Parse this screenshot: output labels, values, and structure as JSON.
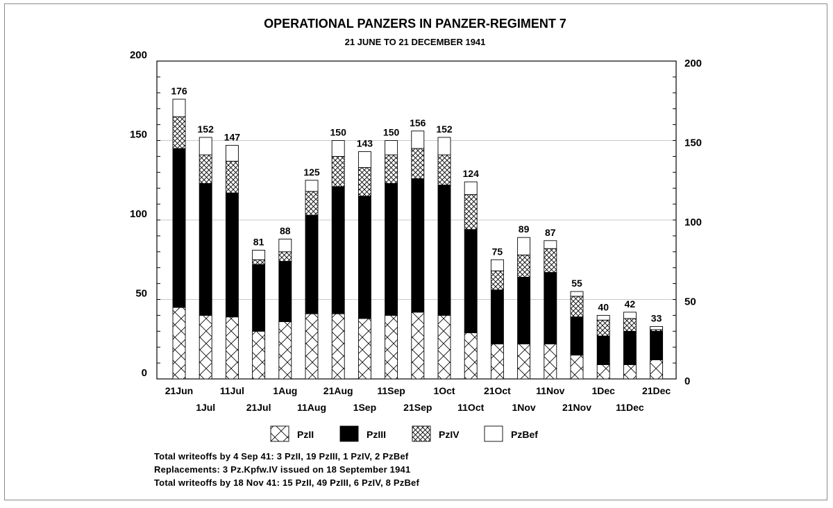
{
  "chart_data": {
    "type": "bar",
    "stacked": true,
    "title": "OPERATIONAL PANZERS IN PANZER-REGIMENT 7",
    "subtitle": "21 JUNE TO 21 DECEMBER 1941",
    "xlabel": "",
    "ylabel": "",
    "ylim": [
      0,
      200
    ],
    "yticks": [
      0,
      50,
      100,
      150,
      200
    ],
    "categories": [
      "21Jun",
      "1Jul",
      "11Jul",
      "21Jul",
      "1Aug",
      "11Aug",
      "21Aug",
      "1Sep",
      "11Sep",
      "21Sep",
      "1Oct",
      "11Oct",
      "21Oct",
      "1Nov",
      "11Nov",
      "21Nov",
      "1Dec",
      "11Dec",
      "21Dec"
    ],
    "totals": [
      176,
      152,
      147,
      81,
      88,
      125,
      150,
      143,
      150,
      156,
      152,
      124,
      75,
      89,
      87,
      55,
      40,
      42,
      33
    ],
    "series": [
      {
        "name": "PzII",
        "pattern": "diag-cross",
        "values": [
          45,
          40,
          39,
          30,
          36,
          41,
          41,
          38,
          40,
          42,
          40,
          29,
          22,
          22,
          22,
          15,
          9,
          9,
          12
        ]
      },
      {
        "name": "PzIII",
        "pattern": "solid-black",
        "values": [
          100,
          83,
          78,
          42,
          38,
          62,
          80,
          77,
          83,
          84,
          82,
          65,
          34,
          42,
          45,
          24,
          18,
          21,
          18
        ]
      },
      {
        "name": "PzIV",
        "pattern": "crosshatch",
        "values": [
          20,
          18,
          20,
          3,
          6,
          15,
          19,
          18,
          18,
          19,
          19,
          22,
          12,
          14,
          15,
          13,
          10,
          8,
          1
        ]
      },
      {
        "name": "PzBef",
        "pattern": "white",
        "values": [
          11,
          11,
          10,
          6,
          8,
          7,
          10,
          10,
          9,
          11,
          11,
          8,
          7,
          11,
          5,
          3,
          3,
          4,
          2
        ]
      }
    ],
    "legend": [
      "PzII",
      "PzIII",
      "PzIV",
      "PzBef"
    ],
    "legend_position": "bottom",
    "grid": true
  },
  "notes": [
    "Total writeoffs by 4 Sep 41:  3 PzII, 19 PzIII, 1 PzIV, 2 PzBef",
    "Replacements:  3 Pz.Kpfw.IV issued on 18 September 1941",
    "Total writeoffs by 18 Nov 41:  15 PzII, 49 PzIII, 6 PzIV, 8 PzBef"
  ]
}
